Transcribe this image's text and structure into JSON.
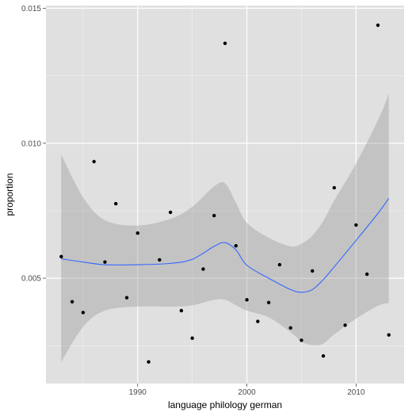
{
  "chart_data": {
    "type": "scatter",
    "xlabel": "language philology german",
    "ylabel": "proportion",
    "xlim": [
      1981.6,
      2014.4
    ],
    "ylim": [
      0.0011,
      0.0151
    ],
    "x_ticks": [
      1990,
      2000,
      2010
    ],
    "x_tick_labels": [
      "1990",
      "2000",
      "2010"
    ],
    "y_ticks": [
      0.005,
      0.01,
      0.015
    ],
    "y_tick_labels": [
      "0.005",
      "0.010",
      "0.015"
    ],
    "grid": true,
    "colors": {
      "panel": "#e0e0e0",
      "grid": "#ffffff",
      "points": "#000000",
      "smooth_line": "#3366ff",
      "ribbon": "#999999"
    },
    "points": [
      {
        "x": 1983,
        "y": 0.0058
      },
      {
        "x": 1984,
        "y": 0.00413
      },
      {
        "x": 1985,
        "y": 0.00373
      },
      {
        "x": 1986,
        "y": 0.00932
      },
      {
        "x": 1987,
        "y": 0.0056
      },
      {
        "x": 1988,
        "y": 0.00776
      },
      {
        "x": 1989,
        "y": 0.00428
      },
      {
        "x": 1990,
        "y": 0.00667
      },
      {
        "x": 1991,
        "y": 0.0019
      },
      {
        "x": 1992,
        "y": 0.00568
      },
      {
        "x": 1993,
        "y": 0.00744
      },
      {
        "x": 1994,
        "y": 0.0038
      },
      {
        "x": 1995,
        "y": 0.00278
      },
      {
        "x": 1996,
        "y": 0.00534
      },
      {
        "x": 1997,
        "y": 0.00732
      },
      {
        "x": 1998,
        "y": 0.0137
      },
      {
        "x": 1999,
        "y": 0.0062
      },
      {
        "x": 2000,
        "y": 0.0042
      },
      {
        "x": 2001,
        "y": 0.0034
      },
      {
        "x": 2002,
        "y": 0.0041
      },
      {
        "x": 2003,
        "y": 0.0055
      },
      {
        "x": 2004,
        "y": 0.00316
      },
      {
        "x": 2005,
        "y": 0.0027
      },
      {
        "x": 2006,
        "y": 0.00527
      },
      {
        "x": 2007,
        "y": 0.00212
      },
      {
        "x": 2008,
        "y": 0.00835
      },
      {
        "x": 2009,
        "y": 0.00326
      },
      {
        "x": 2010,
        "y": 0.00697
      },
      {
        "x": 2011,
        "y": 0.00515
      },
      {
        "x": 2012,
        "y": 0.01437
      },
      {
        "x": 2013,
        "y": 0.0029
      }
    ],
    "smooth": [
      {
        "x": 1983,
        "y": 0.00572,
        "ymin": 0.0019,
        "ymax": 0.00958
      },
      {
        "x": 1985,
        "y": 0.0056,
        "ymin": 0.0032,
        "ymax": 0.008
      },
      {
        "x": 1987,
        "y": 0.0055,
        "ymin": 0.0038,
        "ymax": 0.00715
      },
      {
        "x": 1990,
        "y": 0.0055,
        "ymin": 0.00395,
        "ymax": 0.00695
      },
      {
        "x": 1993,
        "y": 0.00555,
        "ymin": 0.00395,
        "ymax": 0.0072
      },
      {
        "x": 1995,
        "y": 0.0057,
        "ymin": 0.004,
        "ymax": 0.00765
      },
      {
        "x": 1997,
        "y": 0.00618,
        "ymin": 0.0042,
        "ymax": 0.0084
      },
      {
        "x": 1998,
        "y": 0.00632,
        "ymin": 0.0042,
        "ymax": 0.00852
      },
      {
        "x": 1999,
        "y": 0.00605,
        "ymin": 0.004,
        "ymax": 0.0078
      },
      {
        "x": 2000,
        "y": 0.00548,
        "ymin": 0.0038,
        "ymax": 0.00705
      },
      {
        "x": 2002,
        "y": 0.005,
        "ymin": 0.00355,
        "ymax": 0.0065
      },
      {
        "x": 2004,
        "y": 0.00458,
        "ymin": 0.003,
        "ymax": 0.00618
      },
      {
        "x": 2005,
        "y": 0.00448,
        "ymin": 0.00265,
        "ymax": 0.00628
      },
      {
        "x": 2006,
        "y": 0.00458,
        "ymin": 0.00252,
        "ymax": 0.00658
      },
      {
        "x": 2007,
        "y": 0.00495,
        "ymin": 0.00258,
        "ymax": 0.00712
      },
      {
        "x": 2008,
        "y": 0.00542,
        "ymin": 0.00292,
        "ymax": 0.00788
      },
      {
        "x": 2010,
        "y": 0.0064,
        "ymin": 0.0035,
        "ymax": 0.00925
      },
      {
        "x": 2012,
        "y": 0.0074,
        "ymin": 0.00398,
        "ymax": 0.01085
      },
      {
        "x": 2013,
        "y": 0.00796,
        "ymin": 0.00408,
        "ymax": 0.01183
      }
    ]
  }
}
